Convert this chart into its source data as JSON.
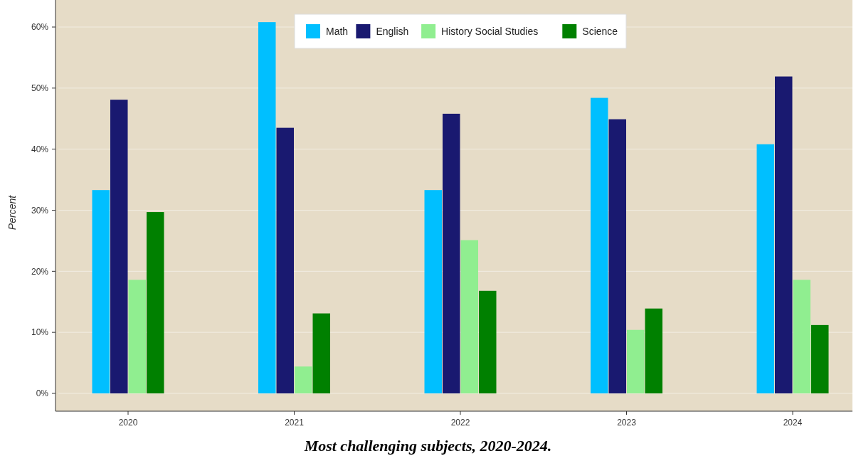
{
  "chart_data": {
    "type": "bar",
    "title": "Most challenging subjects, 2020-2024.",
    "ylabel": "Percent",
    "categories": [
      "2020",
      "2021",
      "2022",
      "2023",
      "2024"
    ],
    "series": [
      {
        "name": "Math",
        "color": "#00bfff",
        "values": [
          33.3,
          60.8,
          33.3,
          48.4,
          40.8
        ]
      },
      {
        "name": "English",
        "color": "#191970",
        "values": [
          48.1,
          43.5,
          45.8,
          44.9,
          51.9
        ]
      },
      {
        "name": "History Social Studies",
        "color": "#90ee90",
        "values": [
          18.6,
          4.4,
          25.1,
          10.4,
          18.6
        ]
      },
      {
        "name": "Science",
        "color": "#008000",
        "values": [
          29.7,
          13.1,
          16.8,
          13.9,
          11.2
        ]
      }
    ],
    "ylim": [
      0,
      64.5
    ],
    "yticks": [
      {
        "value": 0,
        "label": "0%"
      },
      {
        "value": 10,
        "label": "10%"
      },
      {
        "value": 20,
        "label": "20%"
      },
      {
        "value": 30,
        "label": "30%"
      },
      {
        "value": 40,
        "label": "40%"
      },
      {
        "value": 50,
        "label": "50%"
      },
      {
        "value": 60,
        "label": "60%"
      }
    ],
    "grid": "y",
    "legend": "top"
  }
}
